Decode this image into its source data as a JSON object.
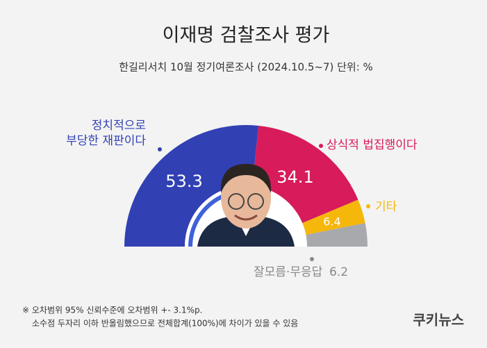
{
  "chart_data": {
    "type": "donut",
    "semicircle": true,
    "title": "이재명 검찰조사 평가",
    "subtitle": "한길리서치 10월 정기여론조사 (2024.10.5~7) 단위: %",
    "series": [
      {
        "name": "정치적으로\n부당한 재판이다",
        "color": "#3141b3",
        "values": [
          53.3
        ]
      },
      {
        "name": "상식적 법집행이다",
        "color": "#d81b5b",
        "values": [
          34.1
        ]
      },
      {
        "name": "기타",
        "color": "#f6b70b",
        "values": [
          6.4
        ]
      },
      {
        "name": "잘모름·무응답",
        "color": "#a8a9ad",
        "values": [
          6.2
        ]
      }
    ],
    "notes": [
      "※ 오차범위 95% 신뢰수준에 오차범위 +- 3.1%p.",
      "소수점 두자리 이하 반올림했으므로 전체합계(100%)에 차이가 있을 수 있음"
    ],
    "source": "쿠키뉴스"
  }
}
